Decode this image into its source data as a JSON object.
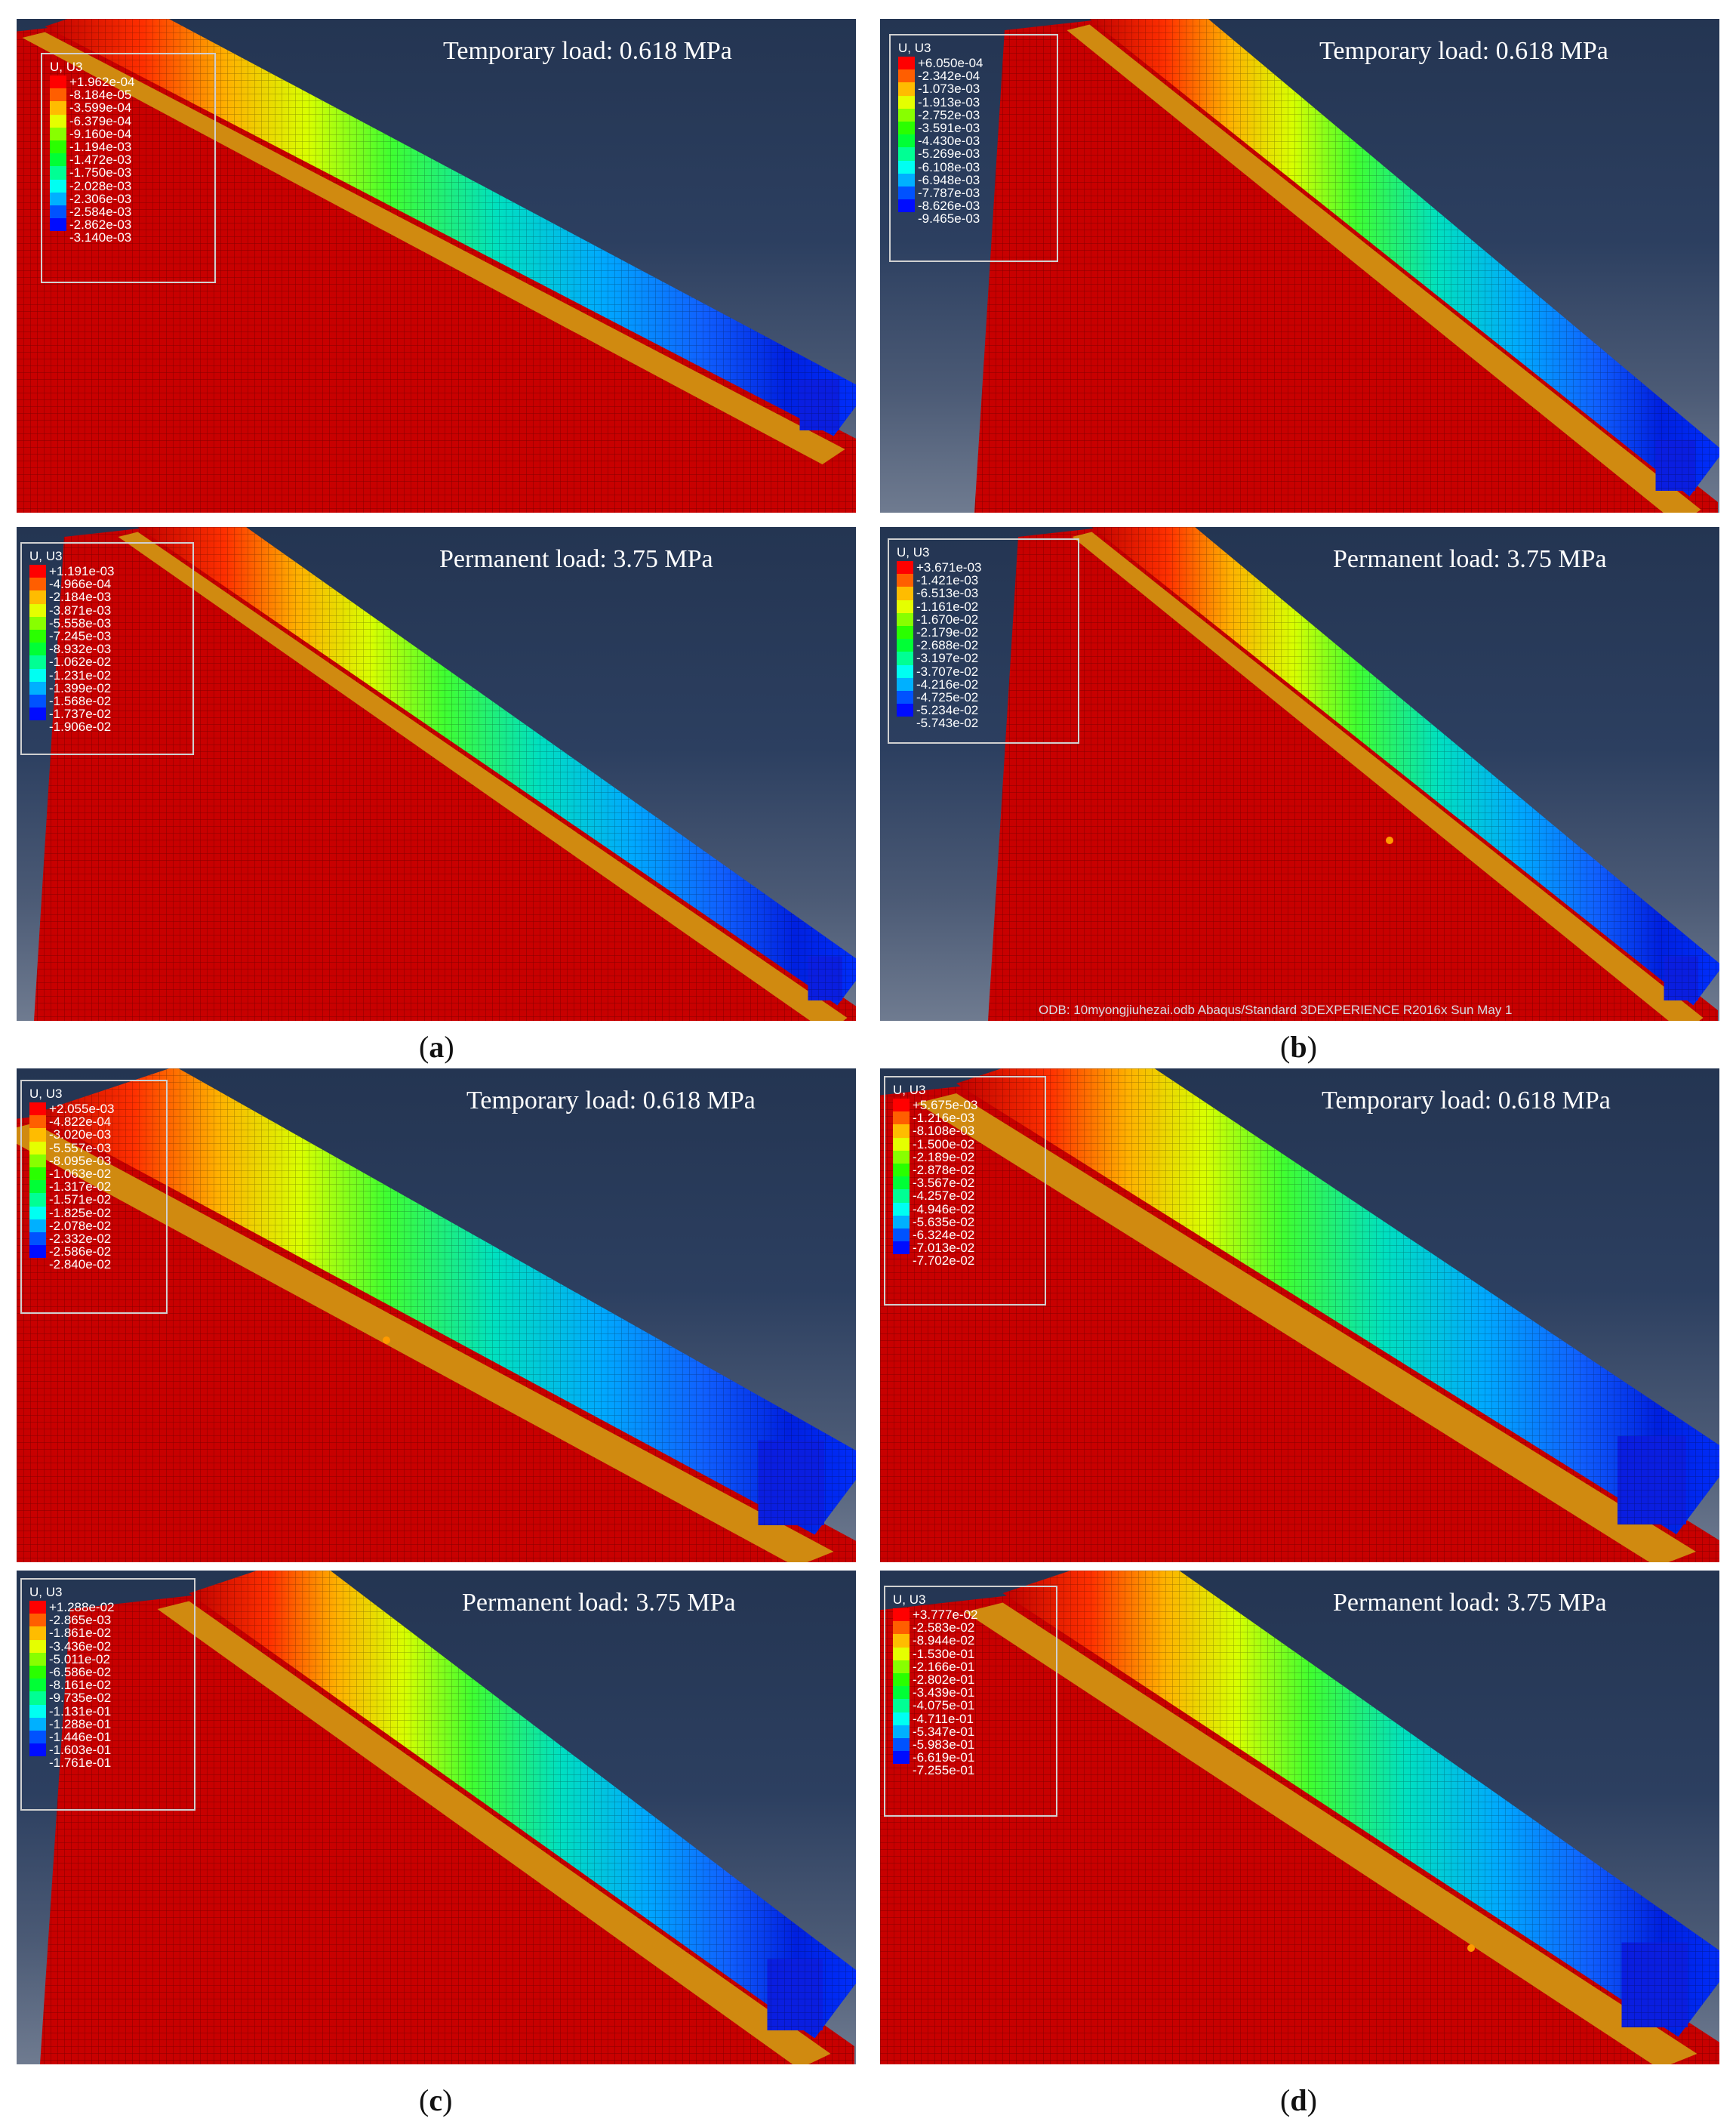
{
  "legend_colors": [
    "#ff0000",
    "#ff5e00",
    "#ffbc00",
    "#e5ff00",
    "#88ff00",
    "#2aff00",
    "#00ff36",
    "#00ff94",
    "#00fff2",
    "#00b0ff",
    "#0052ff",
    "#000cff"
  ],
  "panels": [
    {
      "load_label": "Temporary load: 0.618 MPa",
      "legend_title": "U, U3",
      "legend_values": [
        "+1.962e-04",
        "-8.184e-05",
        "-3.599e-04",
        "-6.379e-04",
        "-9.160e-04",
        "-1.194e-03",
        "-1.472e-03",
        "-1.750e-03",
        "-2.028e-03",
        "-2.306e-03",
        "-2.584e-03",
        "-2.862e-03",
        "-3.140e-03"
      ]
    },
    {
      "load_label": "Temporary load: 0.618 MPa",
      "legend_title": "U, U3",
      "legend_values": [
        "+6.050e-04",
        "-2.342e-04",
        "-1.073e-03",
        "-1.913e-03",
        "-2.752e-03",
        "-3.591e-03",
        "-4.430e-03",
        "-5.269e-03",
        "-6.108e-03",
        "-6.948e-03",
        "-7.787e-03",
        "-8.626e-03",
        "-9.465e-03"
      ]
    },
    {
      "load_label": "Permanent load: 3.75 MPa",
      "legend_title": "U, U3",
      "legend_values": [
        "+1.191e-03",
        "-4.966e-04",
        "-2.184e-03",
        "-3.871e-03",
        "-5.558e-03",
        "-7.245e-03",
        "-8.932e-03",
        "-1.062e-02",
        "-1.231e-02",
        "-1.399e-02",
        "-1.568e-02",
        "-1.737e-02",
        "-1.906e-02"
      ]
    },
    {
      "load_label": "Permanent load: 3.75 MPa",
      "legend_title": "U, U3",
      "legend_values": [
        "+3.671e-03",
        "-1.421e-03",
        "-6.513e-03",
        "-1.161e-02",
        "-1.670e-02",
        "-2.179e-02",
        "-2.688e-02",
        "-3.197e-02",
        "-3.707e-02",
        "-4.216e-02",
        "-4.725e-02",
        "-5.234e-02",
        "-5.743e-02"
      ],
      "footer": "ODB: 10myongjiuhezai.odb    Abaqus/Standard 3DEXPERIENCE R2016x    Sun May 1"
    },
    {
      "load_label": "Temporary load: 0.618 MPa",
      "legend_title": "U, U3",
      "legend_values": [
        "+2.055e-03",
        "-4.822e-04",
        "-3.020e-03",
        "-5.557e-03",
        "-8.095e-03",
        "-1.063e-02",
        "-1.317e-02",
        "-1.571e-02",
        "-1.825e-02",
        "-2.078e-02",
        "-2.332e-02",
        "-2.586e-02",
        "-2.840e-02"
      ]
    },
    {
      "load_label": "Temporary load: 0.618 MPa",
      "legend_title": "U, U3",
      "legend_values": [
        "+5.675e-03",
        "-1.216e-03",
        "-8.108e-03",
        "-1.500e-02",
        "-2.189e-02",
        "-2.878e-02",
        "-3.567e-02",
        "-4.257e-02",
        "-4.946e-02",
        "-5.635e-02",
        "-6.324e-02",
        "-7.013e-02",
        "-7.702e-02"
      ]
    },
    {
      "load_label": "Permanent load: 3.75 MPa",
      "legend_title": "U, U3",
      "legend_values": [
        "+1.288e-02",
        "-2.865e-03",
        "-1.861e-02",
        "-3.436e-02",
        "-5.011e-02",
        "-6.586e-02",
        "-8.161e-02",
        "-9.735e-02",
        "-1.131e-01",
        "-1.288e-01",
        "-1.446e-01",
        "-1.603e-01",
        "-1.761e-01"
      ]
    },
    {
      "load_label": "Permanent load: 3.75 MPa",
      "legend_title": "U, U3",
      "legend_values": [
        "+3.777e-02",
        "-2.583e-02",
        "-8.944e-02",
        "-1.530e-01",
        "-2.166e-01",
        "-2.802e-01",
        "-3.439e-01",
        "-4.075e-01",
        "-4.711e-01",
        "-5.347e-01",
        "-5.983e-01",
        "-6.619e-01",
        "-7.255e-01"
      ]
    }
  ],
  "captions": [
    "(a)",
    "(b)",
    "(c)",
    "(d)"
  ],
  "caption_letters": [
    "a",
    "b",
    "c",
    "d"
  ]
}
